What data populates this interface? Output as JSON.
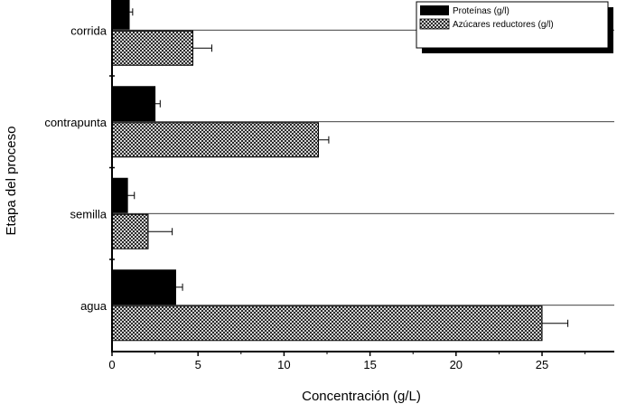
{
  "chart_data": {
    "type": "bar",
    "orientation": "horizontal",
    "categories": [
      "agua",
      "semilla",
      "contrapunta",
      "corrida"
    ],
    "series": [
      {
        "name": "Proteínas (g/l)",
        "values": [
          3.7,
          0.9,
          2.5,
          1.0
        ],
        "errors": [
          0.4,
          0.4,
          0.3,
          0.2
        ],
        "fill": "solid"
      },
      {
        "name": "Azúcares reductores (g/l)",
        "values": [
          25.0,
          2.1,
          12.0,
          4.7
        ],
        "errors": [
          1.5,
          1.4,
          0.6,
          1.1
        ],
        "fill": "crosshatch"
      }
    ],
    "xlabel": "Concentración (g/L)",
    "ylabel": "Etapa del proceso",
    "xlim": [
      0,
      29.2
    ],
    "xticks": [
      0,
      5,
      10,
      15,
      20,
      25
    ],
    "legend_position": "top-right",
    "colors": {
      "solid": "#000000",
      "hatch": "#000000",
      "background": "#ffffff"
    }
  }
}
